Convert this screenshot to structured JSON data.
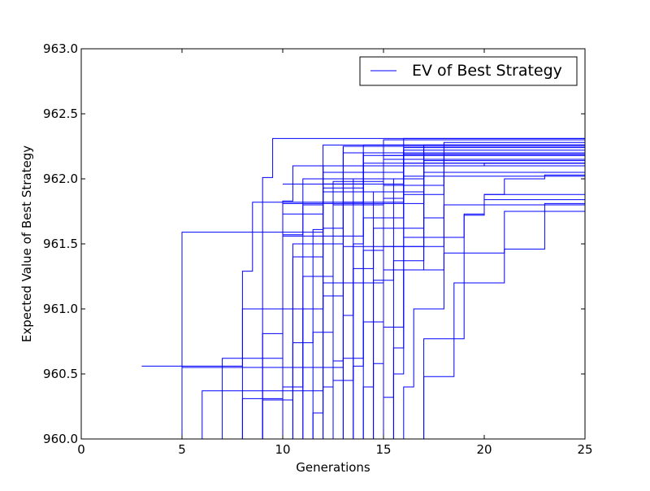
{
  "chart_data": {
    "type": "line",
    "title": "",
    "xlabel": "Generations",
    "ylabel": "Expected Value of Best Strategy",
    "xlim": [
      0,
      25
    ],
    "ylim": [
      960.0,
      963.0
    ],
    "xticks": [
      0,
      5,
      10,
      15,
      20,
      25
    ],
    "xtick_labels": [
      "0",
      "5",
      "10",
      "15",
      "20",
      "25"
    ],
    "yticks": [
      960.0,
      960.5,
      961.0,
      961.5,
      962.0,
      962.5,
      963.0
    ],
    "ytick_labels": [
      "960.0",
      "960.5",
      "961.0",
      "961.5",
      "962.0",
      "962.5",
      "963.0"
    ],
    "grid": false,
    "legend": {
      "position": "top-right",
      "entries": [
        "EV of Best Strategy"
      ]
    },
    "line_color": "#0000ff",
    "step": true,
    "series": [
      {
        "x": [
          3,
          7,
          8,
          12,
          16,
          25
        ],
        "y": [
          960.56,
          960.56,
          961.0,
          961.96,
          962.19,
          962.24
        ]
      },
      {
        "x": [
          4.5,
          5,
          9,
          12,
          16,
          25
        ],
        "y": [
          960.0,
          961.59,
          961.59,
          962.05,
          962.2,
          962.25
        ]
      },
      {
        "x": [
          4.8,
          5,
          7,
          13,
          18,
          25
        ],
        "y": [
          960.0,
          960.55,
          960.55,
          961.48,
          962.15,
          962.2
        ]
      },
      {
        "x": [
          5.8,
          6,
          8,
          12,
          15,
          25
        ],
        "y": [
          960.0,
          960.37,
          960.37,
          961.2,
          962.25,
          962.3
        ]
      },
      {
        "x": [
          6,
          9,
          9.5,
          16,
          25
        ],
        "y": [
          960.0,
          962.01,
          962.31,
          962.31,
          962.31
        ]
      },
      {
        "x": [
          6.7,
          7,
          8,
          10,
          17,
          25
        ],
        "y": [
          960.0,
          960.62,
          960.62,
          961.81,
          962.2,
          962.28
        ]
      },
      {
        "x": [
          7,
          8,
          8.5,
          14,
          25
        ],
        "y": [
          960.0,
          961.29,
          961.82,
          962.1,
          962.21
        ]
      },
      {
        "x": [
          7.5,
          8,
          10,
          14,
          25
        ],
        "y": [
          960.0,
          960.31,
          961.56,
          962.2,
          962.27
        ]
      },
      {
        "x": [
          8,
          9,
          10,
          12,
          18,
          25
        ],
        "y": [
          960.0,
          960.81,
          961.73,
          962.1,
          962.2,
          962.29
        ]
      },
      {
        "x": [
          8.5,
          9,
          10.5,
          13,
          25
        ],
        "y": [
          960.0,
          960.3,
          961.5,
          962.25,
          962.3
        ]
      },
      {
        "x": [
          9,
          10,
          10.5,
          14,
          25
        ],
        "y": [
          960.0,
          961.83,
          962.1,
          962.2,
          962.27
        ]
      },
      {
        "x": [
          9.5,
          10,
          11,
          12,
          17,
          25
        ],
        "y": [
          960.0,
          960.4,
          961.8,
          962.1,
          962.25,
          962.3
        ]
      },
      {
        "x": [
          9.8,
          10,
          11,
          15,
          25
        ],
        "y": [
          960.0,
          961.57,
          962.0,
          962.15,
          962.2
        ]
      },
      {
        "x": [
          10,
          10.5,
          11.5,
          12,
          16,
          25
        ],
        "y": [
          960.0,
          960.74,
          961.61,
          962.26,
          962.26,
          962.33
        ]
      },
      {
        "x": [
          10.2,
          10.5,
          12,
          14,
          25
        ],
        "y": [
          960.0,
          961.4,
          961.93,
          962.12,
          962.25
        ]
      },
      {
        "x": [
          10.5,
          11,
          12,
          13,
          25
        ],
        "y": [
          960.0,
          961.0,
          962.1,
          962.2,
          962.29
        ]
      },
      {
        "x": [
          10.8,
          11,
          12.5,
          15,
          25
        ],
        "y": [
          960.0,
          961.25,
          961.98,
          962.18,
          962.22
        ]
      },
      {
        "x": [
          11,
          11.5,
          12,
          13,
          18,
          25
        ],
        "y": [
          960.0,
          960.2,
          961.62,
          962.25,
          962.28,
          962.3
        ]
      },
      {
        "x": [
          11.2,
          11.5,
          12.5,
          14,
          25
        ],
        "y": [
          960.0,
          960.82,
          961.9,
          962.1,
          962.2
        ]
      },
      {
        "x": [
          11.5,
          12,
          12.5,
          15,
          25
        ],
        "y": [
          960.0,
          960.4,
          961.8,
          962.2,
          962.27
        ]
      },
      {
        "x": [
          11.7,
          12,
          13,
          14,
          25
        ],
        "y": [
          960.0,
          961.1,
          962.05,
          962.26,
          962.31
        ]
      },
      {
        "x": [
          12,
          12.5,
          13,
          16,
          25
        ],
        "y": [
          960.0,
          960.6,
          961.82,
          962.02,
          962.1
        ]
      },
      {
        "x": [
          12.2,
          12.5,
          13.5,
          14,
          19,
          25
        ],
        "y": [
          960.0,
          960.45,
          961.5,
          962.18,
          962.18,
          962.25
        ]
      },
      {
        "x": [
          12.5,
          13,
          14,
          16,
          25
        ],
        "y": [
          960.0,
          960.62,
          961.7,
          962.22,
          962.29
        ]
      },
      {
        "x": [
          12.8,
          13,
          13.5,
          15,
          25
        ],
        "y": [
          960.0,
          960.95,
          962.0,
          962.2,
          962.26
        ]
      },
      {
        "x": [
          13,
          13.5,
          14,
          15,
          25
        ],
        "y": [
          960.0,
          960.56,
          961.45,
          962.3,
          962.31
        ]
      },
      {
        "x": [
          13.2,
          13.5,
          14.5,
          17,
          25
        ],
        "y": [
          960.0,
          961.31,
          961.9,
          962.1,
          962.2
        ]
      },
      {
        "x": [
          13.5,
          14,
          14.5,
          16,
          25
        ],
        "y": [
          960.0,
          960.4,
          961.62,
          962.24,
          962.3
        ]
      },
      {
        "x": [
          13.8,
          14,
          15,
          16,
          25
        ],
        "y": [
          960.0,
          960.9,
          961.85,
          962.12,
          962.2
        ]
      },
      {
        "x": [
          14,
          14.5,
          15,
          17,
          25
        ],
        "y": [
          960.0,
          960.58,
          961.48,
          962.26,
          962.29
        ]
      },
      {
        "x": [
          14.2,
          14.5,
          15.5,
          16,
          25
        ],
        "y": [
          960.0,
          961.22,
          962.0,
          962.31,
          962.32
        ]
      },
      {
        "x": [
          14.5,
          15,
          15.5,
          17,
          25
        ],
        "y": [
          960.0,
          960.32,
          961.37,
          962.14,
          962.22
        ]
      },
      {
        "x": [
          14.8,
          15,
          16,
          17,
          25
        ],
        "y": [
          960.0,
          960.86,
          961.62,
          962.2,
          962.28
        ]
      },
      {
        "x": [
          15,
          15.5,
          16,
          18,
          25
        ],
        "y": [
          960.0,
          960.7,
          961.88,
          962.25,
          962.3
        ]
      },
      {
        "x": [
          15.3,
          15.5,
          16,
          17,
          25
        ],
        "y": [
          960.0,
          960.5,
          961.3,
          962.05,
          962.15
        ]
      },
      {
        "x": [
          15.6,
          16,
          16.5,
          18,
          25
        ],
        "y": [
          960.0,
          960.4,
          961.0,
          961.8,
          962.05
        ]
      },
      {
        "x": [
          16.5,
          17,
          18,
          19,
          20,
          25
        ],
        "y": [
          960.0,
          960.77,
          960.77,
          961.73,
          961.84,
          961.84
        ]
      },
      {
        "x": [
          16.7,
          17,
          18,
          18.5,
          21,
          25
        ],
        "y": [
          960.0,
          960.48,
          960.48,
          961.2,
          961.75,
          961.8
        ]
      },
      {
        "x": [
          15,
          18,
          19,
          20,
          21,
          22,
          23,
          25
        ],
        "y": [
          961.3,
          961.43,
          961.43,
          961.43,
          961.46,
          961.46,
          961.81,
          961.81
        ]
      },
      {
        "x": [
          16,
          17,
          19,
          20,
          22,
          25
        ],
        "y": [
          961.55,
          961.55,
          961.72,
          961.88,
          961.88,
          962.04
        ]
      },
      {
        "x": [
          17,
          18,
          20,
          21,
          23,
          24,
          25
        ],
        "y": [
          961.7,
          961.8,
          961.88,
          962.0,
          962.03,
          962.03,
          962.1
        ]
      },
      {
        "x": [
          12,
          15,
          18,
          21,
          25
        ],
        "y": [
          961.9,
          961.95,
          962.05,
          962.05,
          962.13
        ]
      },
      {
        "x": [
          10,
          14,
          17,
          20,
          25
        ],
        "y": [
          961.96,
          962.0,
          962.1,
          962.12,
          962.12
        ]
      }
    ]
  }
}
